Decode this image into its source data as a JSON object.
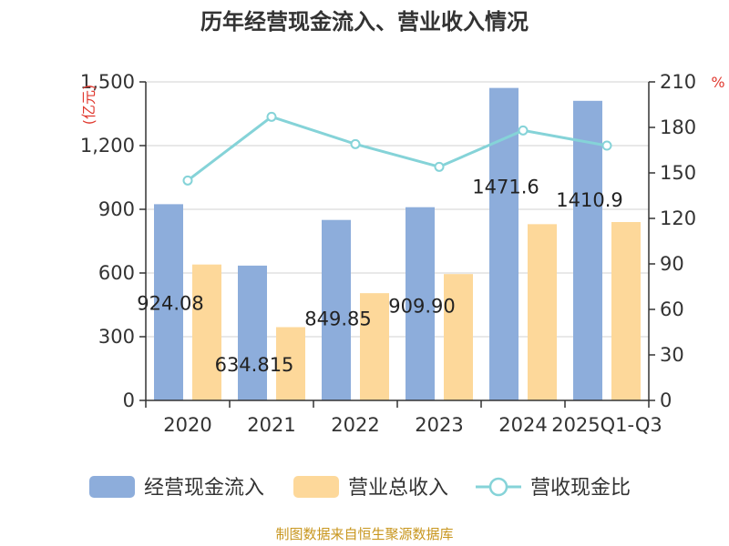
{
  "chart_data": {
    "type": "bar",
    "title": "历年经营现金流入、营业收入情况",
    "categories": [
      "2020",
      "2021",
      "2022",
      "2023",
      "2024",
      "2025Q1-Q3"
    ],
    "series": [
      {
        "name": "经营现金流入",
        "type": "bar",
        "axis": "left",
        "color": "#8DADDB",
        "values": [
          924.08,
          634.815,
          849.85,
          909.9,
          1471.6,
          1410.9
        ],
        "labels": [
          "924.08",
          "634.815",
          "849.85",
          "909.90",
          "1471.6",
          "1410.9"
        ]
      },
      {
        "name": "营业总收入",
        "type": "bar",
        "axis": "left",
        "color": "#FDD89A",
        "values": [
          640,
          345,
          505,
          595,
          830,
          840
        ]
      },
      {
        "name": "营收现金比",
        "type": "line",
        "axis": "right",
        "color": "#85D3D8",
        "values": [
          145,
          187,
          169,
          154,
          178,
          168
        ]
      }
    ],
    "left_axis": {
      "unit": "(亿元)",
      "ylim": [
        0,
        1500
      ],
      "ticks": [
        0,
        300,
        600,
        900,
        1200,
        1500
      ],
      "tick_labels": [
        "0",
        "300",
        "600",
        "900",
        "1,200",
        "1,500"
      ],
      "color": "#E0382E"
    },
    "right_axis": {
      "unit": "%",
      "ylim": [
        0,
        210
      ],
      "ticks": [
        0,
        30,
        60,
        90,
        120,
        150,
        180,
        210
      ],
      "tick_labels": [
        "0",
        "30",
        "60",
        "90",
        "120",
        "150",
        "180",
        "210"
      ],
      "color": "#E0382E"
    },
    "grid": true,
    "legend_position": "bottom"
  },
  "source": "制图数据来自恒生聚源数据库",
  "source_color": "#C8961E",
  "axis_color": "#333333",
  "grid_color": "#D0D0D0"
}
